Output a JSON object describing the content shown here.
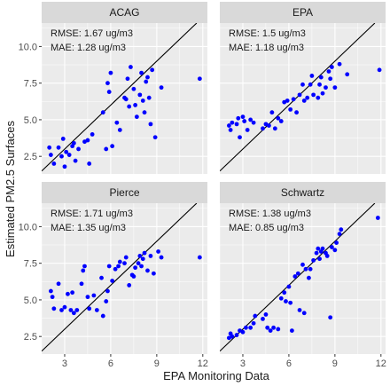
{
  "figure": {
    "xlabel": "EPA Monitoring Data",
    "ylabel": "Estimated PM2.5 Surfaces"
  },
  "chart_data": {
    "type": "scatter",
    "xlabel": "EPA Monitoring Data",
    "ylabel": "Estimated PM2.5 Surfaces",
    "xlim": [
      1.5,
      12.3
    ],
    "ylim": [
      1.3,
      11.6
    ],
    "x_ticks": [
      3,
      6,
      9,
      12
    ],
    "y_ticks": [
      2.5,
      5.0,
      7.5,
      10.0
    ],
    "x_tick_labels": [
      "3",
      "6",
      "9",
      "12"
    ],
    "y_tick_labels": [
      "2.5",
      "5.0",
      "7.5",
      "10.0"
    ],
    "grid": true,
    "reference_line": "y = x",
    "colors": {
      "points": "#0000ff",
      "line": "#000000",
      "panel": "#ebebeb",
      "strip": "#d9d9d9",
      "grid": "#ffffff"
    },
    "panels": [
      {
        "name": "ACAG",
        "annotations": [
          "RMSE: 1.67 ug/m3",
          "MAE: 1.28 ug/m3"
        ],
        "points": [
          [
            2.0,
            3.1
          ],
          [
            2.1,
            2.6
          ],
          [
            2.3,
            2.0
          ],
          [
            2.6,
            3.1
          ],
          [
            2.8,
            2.5
          ],
          [
            2.9,
            3.7
          ],
          [
            3.0,
            1.8
          ],
          [
            3.1,
            2.8
          ],
          [
            3.3,
            2.6
          ],
          [
            3.5,
            3.2
          ],
          [
            3.6,
            3.4
          ],
          [
            3.7,
            2.2
          ],
          [
            3.9,
            3.0
          ],
          [
            4.3,
            3.5
          ],
          [
            4.5,
            3.6
          ],
          [
            4.6,
            2.0
          ],
          [
            4.8,
            4.0
          ],
          [
            5.5,
            5.5
          ],
          [
            5.7,
            3.0
          ],
          [
            5.8,
            7.5
          ],
          [
            5.9,
            6.9
          ],
          [
            6.0,
            8.2
          ],
          [
            6.1,
            3.2
          ],
          [
            6.4,
            4.8
          ],
          [
            6.6,
            4.3
          ],
          [
            6.9,
            6.5
          ],
          [
            7.0,
            6.4
          ],
          [
            7.1,
            7.8
          ],
          [
            7.2,
            5.9
          ],
          [
            7.3,
            8.6
          ],
          [
            7.5,
            7.1
          ],
          [
            7.6,
            6.0
          ],
          [
            7.7,
            5.2
          ],
          [
            7.9,
            6.7
          ],
          [
            8.0,
            8.2
          ],
          [
            8.1,
            6.3
          ],
          [
            8.2,
            5.5
          ],
          [
            8.3,
            7.6
          ],
          [
            8.4,
            7.9
          ],
          [
            8.5,
            6.5
          ],
          [
            8.6,
            4.7
          ],
          [
            8.7,
            8.4
          ],
          [
            8.9,
            3.8
          ],
          [
            9.3,
            7.2
          ],
          [
            11.8,
            7.8
          ]
        ]
      },
      {
        "name": "EPA",
        "annotations": [
          "RMSE: 1.5 ug/m3",
          "MAE: 1.18 ug/m3"
        ],
        "points": [
          [
            2.1,
            4.6
          ],
          [
            2.2,
            4.3
          ],
          [
            2.3,
            4.8
          ],
          [
            2.6,
            4.7
          ],
          [
            2.7,
            5.1
          ],
          [
            2.8,
            3.8
          ],
          [
            3.0,
            5.2
          ],
          [
            3.1,
            4.9
          ],
          [
            3.3,
            4.3
          ],
          [
            3.5,
            5.0
          ],
          [
            3.7,
            4.8
          ],
          [
            4.3,
            4.4
          ],
          [
            4.5,
            4.7
          ],
          [
            4.7,
            4.6
          ],
          [
            4.9,
            5.5
          ],
          [
            5.1,
            4.4
          ],
          [
            5.3,
            5.1
          ],
          [
            5.5,
            4.9
          ],
          [
            5.7,
            6.2
          ],
          [
            5.9,
            6.3
          ],
          [
            6.1,
            5.7
          ],
          [
            6.3,
            6.4
          ],
          [
            6.5,
            5.5
          ],
          [
            6.7,
            6.7
          ],
          [
            6.9,
            7.4
          ],
          [
            7.0,
            6.3
          ],
          [
            7.2,
            6.5
          ],
          [
            7.4,
            7.4
          ],
          [
            7.5,
            8.0
          ],
          [
            7.6,
            6.7
          ],
          [
            7.9,
            6.5
          ],
          [
            8.0,
            7.4
          ],
          [
            8.1,
            7.9
          ],
          [
            8.2,
            6.8
          ],
          [
            8.4,
            7.2
          ],
          [
            8.6,
            8.3
          ],
          [
            8.7,
            7.8
          ],
          [
            8.8,
            8.6
          ],
          [
            9.0,
            7.2
          ],
          [
            9.3,
            8.8
          ],
          [
            9.8,
            8.1
          ],
          [
            11.9,
            8.4
          ]
        ]
      },
      {
        "name": "Pierce",
        "annotations": [
          "RMSE: 1.71 ug/m3",
          "MAE: 1.35 ug/m3"
        ],
        "points": [
          [
            2.1,
            5.6
          ],
          [
            2.2,
            5.2
          ],
          [
            2.3,
            4.4
          ],
          [
            2.6,
            6.1
          ],
          [
            2.8,
            4.3
          ],
          [
            3.0,
            4.5
          ],
          [
            3.2,
            5.4
          ],
          [
            3.4,
            4.3
          ],
          [
            3.5,
            5.5
          ],
          [
            3.6,
            4.1
          ],
          [
            3.8,
            4.3
          ],
          [
            4.1,
            6.1
          ],
          [
            4.2,
            7.0
          ],
          [
            4.3,
            7.3
          ],
          [
            4.5,
            5.2
          ],
          [
            4.6,
            4.4
          ],
          [
            4.9,
            5.3
          ],
          [
            5.1,
            4.3
          ],
          [
            5.4,
            6.5
          ],
          [
            5.5,
            3.9
          ],
          [
            5.7,
            4.9
          ],
          [
            5.8,
            5.6
          ],
          [
            5.9,
            7.3
          ],
          [
            6.1,
            6.3
          ],
          [
            6.3,
            7.1
          ],
          [
            6.5,
            7.3
          ],
          [
            6.6,
            7.6
          ],
          [
            6.9,
            7.5
          ],
          [
            7.0,
            7.9
          ],
          [
            7.2,
            6.0
          ],
          [
            7.4,
            6.7
          ],
          [
            7.5,
            6.6
          ],
          [
            7.6,
            7.2
          ],
          [
            7.8,
            7.5
          ],
          [
            7.9,
            8.0
          ],
          [
            8.0,
            7.3
          ],
          [
            8.1,
            7.8
          ],
          [
            8.2,
            8.2
          ],
          [
            8.4,
            7.0
          ],
          [
            8.6,
            8.0
          ],
          [
            8.8,
            6.8
          ],
          [
            9.1,
            8.3
          ],
          [
            9.3,
            7.9
          ],
          [
            11.8,
            7.9
          ]
        ]
      },
      {
        "name": "Schwartz",
        "annotations": [
          "RMSE: 1.38 ug/m3",
          "MAE: 0.85 ug/m3"
        ],
        "points": [
          [
            2.1,
            2.4
          ],
          [
            2.2,
            2.7
          ],
          [
            2.3,
            2.5
          ],
          [
            2.6,
            2.6
          ],
          [
            2.8,
            2.9
          ],
          [
            3.0,
            2.8
          ],
          [
            3.2,
            3.1
          ],
          [
            3.5,
            3.1
          ],
          [
            3.7,
            3.4
          ],
          [
            3.8,
            3.9
          ],
          [
            4.3,
            3.7
          ],
          [
            4.5,
            4.0
          ],
          [
            4.6,
            3.1
          ],
          [
            4.8,
            2.9
          ],
          [
            5.0,
            3.1
          ],
          [
            5.3,
            3.0
          ],
          [
            5.5,
            5.1
          ],
          [
            5.7,
            5.5
          ],
          [
            5.8,
            4.9
          ],
          [
            6.0,
            5.9
          ],
          [
            6.1,
            4.8
          ],
          [
            6.2,
            2.9
          ],
          [
            6.4,
            6.6
          ],
          [
            6.6,
            6.8
          ],
          [
            6.7,
            4.3
          ],
          [
            6.9,
            7.4
          ],
          [
            7.0,
            4.1
          ],
          [
            7.1,
            7.1
          ],
          [
            7.3,
            6.5
          ],
          [
            7.4,
            7.1
          ],
          [
            7.6,
            7.7
          ],
          [
            7.8,
            8.2
          ],
          [
            7.9,
            8.5
          ],
          [
            8.0,
            7.8
          ],
          [
            8.1,
            8.3
          ],
          [
            8.2,
            8.5
          ],
          [
            8.4,
            8.2
          ],
          [
            8.5,
            8.0
          ],
          [
            8.7,
            3.8
          ],
          [
            8.8,
            8.6
          ],
          [
            9.0,
            8.4
          ],
          [
            9.1,
            8.9
          ],
          [
            9.3,
            9.5
          ],
          [
            9.4,
            9.8
          ],
          [
            11.8,
            10.6
          ]
        ]
      }
    ]
  }
}
